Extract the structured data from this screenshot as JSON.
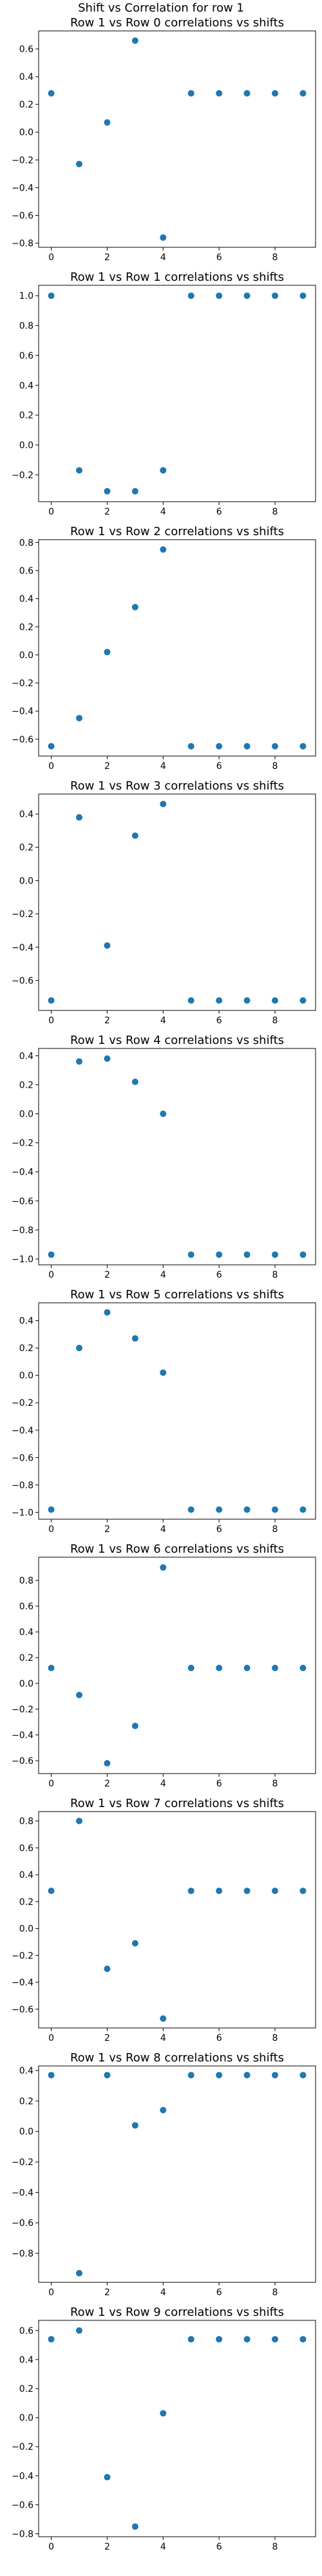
{
  "figure": {
    "suptitle": "Shift vs Correlation for row 1",
    "marker_color": "#1f77b4"
  },
  "chart_data": [
    {
      "type": "scatter",
      "title": "Row 1 vs Row 0 correlations vs shifts",
      "x": [
        0,
        1,
        2,
        3,
        4,
        5,
        6,
        7,
        8,
        9
      ],
      "y": [
        0.28,
        -0.23,
        0.07,
        0.66,
        -0.76,
        0.28,
        0.28,
        0.28,
        0.28,
        0.28
      ],
      "xticks": [
        0,
        2,
        4,
        6,
        8
      ],
      "yticks": [
        -0.8,
        -0.6,
        -0.4,
        -0.2,
        0.0,
        0.2,
        0.4,
        0.6
      ],
      "ytick_labels": [
        "−0.8",
        "−0.6",
        "−0.4",
        "−0.2",
        "0.0",
        "0.2",
        "0.4",
        "0.6"
      ],
      "xlim": [
        -0.45,
        9.45
      ],
      "ylim": [
        -0.83,
        0.73
      ],
      "grid": false
    },
    {
      "type": "scatter",
      "title": "Row 1 vs Row 1 correlations vs shifts",
      "x": [
        0,
        1,
        2,
        3,
        4,
        5,
        6,
        7,
        8,
        9
      ],
      "y": [
        1.0,
        -0.17,
        -0.31,
        -0.31,
        -0.17,
        1.0,
        1.0,
        1.0,
        1.0,
        1.0
      ],
      "xticks": [
        0,
        2,
        4,
        6,
        8
      ],
      "yticks": [
        -0.2,
        0.0,
        0.2,
        0.4,
        0.6,
        0.8,
        1.0
      ],
      "ytick_labels": [
        "−0.2",
        "0.0",
        "0.2",
        "0.4",
        "0.6",
        "0.8",
        "1.0"
      ],
      "xlim": [
        -0.45,
        9.45
      ],
      "ylim": [
        -0.38,
        1.07
      ],
      "grid": false
    },
    {
      "type": "scatter",
      "title": "Row 1 vs Row 2 correlations vs shifts",
      "x": [
        0,
        1,
        2,
        3,
        4,
        5,
        6,
        7,
        8,
        9
      ],
      "y": [
        -0.65,
        -0.45,
        0.02,
        0.34,
        0.75,
        -0.65,
        -0.65,
        -0.65,
        -0.65,
        -0.65
      ],
      "xticks": [
        0,
        2,
        4,
        6,
        8
      ],
      "yticks": [
        -0.6,
        -0.4,
        -0.2,
        0.0,
        0.2,
        0.4,
        0.6,
        0.8
      ],
      "ytick_labels": [
        "−0.6",
        "−0.4",
        "−0.2",
        "0.0",
        "0.2",
        "0.4",
        "0.6",
        "0.8"
      ],
      "xlim": [
        -0.45,
        9.45
      ],
      "ylim": [
        -0.72,
        0.82
      ],
      "grid": false
    },
    {
      "type": "scatter",
      "title": "Row 1 vs Row 3 correlations vs shifts",
      "x": [
        0,
        1,
        2,
        3,
        4,
        5,
        6,
        7,
        8,
        9
      ],
      "y": [
        -0.72,
        0.38,
        -0.39,
        0.27,
        0.46,
        -0.72,
        -0.72,
        -0.72,
        -0.72,
        -0.72
      ],
      "xticks": [
        0,
        2,
        4,
        6,
        8
      ],
      "yticks": [
        -0.6,
        -0.4,
        -0.2,
        0.0,
        0.2,
        0.4
      ],
      "ytick_labels": [
        "−0.6",
        "−0.4",
        "−0.2",
        "0.0",
        "0.2",
        "0.4"
      ],
      "xlim": [
        -0.45,
        9.45
      ],
      "ylim": [
        -0.78,
        0.52
      ],
      "grid": false
    },
    {
      "type": "scatter",
      "title": "Row 1 vs Row 4 correlations vs shifts",
      "x": [
        0,
        1,
        2,
        3,
        4,
        5,
        6,
        7,
        8,
        9
      ],
      "y": [
        -0.97,
        0.36,
        0.38,
        0.22,
        0.0,
        -0.97,
        -0.97,
        -0.97,
        -0.97,
        -0.97
      ],
      "xticks": [
        0,
        2,
        4,
        6,
        8
      ],
      "yticks": [
        -1.0,
        -0.8,
        -0.6,
        -0.4,
        -0.2,
        0.0,
        0.2,
        0.4
      ],
      "ytick_labels": [
        "−1.0",
        "−0.8",
        "−0.6",
        "−0.4",
        "−0.2",
        "0.0",
        "0.2",
        "0.4"
      ],
      "xlim": [
        -0.45,
        9.45
      ],
      "ylim": [
        -1.04,
        0.45
      ],
      "grid": false
    },
    {
      "type": "scatter",
      "title": "Row 1 vs Row 5 correlations vs shifts",
      "x": [
        0,
        1,
        2,
        3,
        4,
        5,
        6,
        7,
        8,
        9
      ],
      "y": [
        -0.98,
        0.2,
        0.46,
        0.27,
        0.02,
        -0.98,
        -0.98,
        -0.98,
        -0.98,
        -0.98
      ],
      "xticks": [
        0,
        2,
        4,
        6,
        8
      ],
      "yticks": [
        -1.0,
        -0.8,
        -0.6,
        -0.4,
        -0.2,
        0.0,
        0.2,
        0.4
      ],
      "ytick_labels": [
        "−1.0",
        "−0.8",
        "−0.6",
        "−0.4",
        "−0.2",
        "0.0",
        "0.2",
        "0.4"
      ],
      "xlim": [
        -0.45,
        9.45
      ],
      "ylim": [
        -1.05,
        0.53
      ],
      "grid": false
    },
    {
      "type": "scatter",
      "title": "Row 1 vs Row 6 correlations vs shifts",
      "x": [
        0,
        1,
        2,
        3,
        4,
        5,
        6,
        7,
        8,
        9
      ],
      "y": [
        0.12,
        -0.09,
        -0.62,
        -0.33,
        0.9,
        0.12,
        0.12,
        0.12,
        0.12,
        0.12
      ],
      "xticks": [
        0,
        2,
        4,
        6,
        8
      ],
      "yticks": [
        -0.6,
        -0.4,
        -0.2,
        0.0,
        0.2,
        0.4,
        0.6,
        0.8
      ],
      "ytick_labels": [
        "−0.6",
        "−0.4",
        "−0.2",
        "0.0",
        "0.2",
        "0.4",
        "0.6",
        "0.8"
      ],
      "xlim": [
        -0.45,
        9.45
      ],
      "ylim": [
        -0.7,
        0.98
      ],
      "grid": false
    },
    {
      "type": "scatter",
      "title": "Row 1 vs Row 7 correlations vs shifts",
      "x": [
        0,
        1,
        2,
        3,
        4,
        5,
        6,
        7,
        8,
        9
      ],
      "y": [
        0.28,
        0.8,
        -0.3,
        -0.11,
        -0.67,
        0.28,
        0.28,
        0.28,
        0.28,
        0.28
      ],
      "xticks": [
        0,
        2,
        4,
        6,
        8
      ],
      "yticks": [
        -0.6,
        -0.4,
        -0.2,
        0.0,
        0.2,
        0.4,
        0.6,
        0.8
      ],
      "ytick_labels": [
        "−0.6",
        "−0.4",
        "−0.2",
        "0.0",
        "0.2",
        "0.4",
        "0.6",
        "0.8"
      ],
      "xlim": [
        -0.45,
        9.45
      ],
      "ylim": [
        -0.74,
        0.87
      ],
      "grid": false
    },
    {
      "type": "scatter",
      "title": "Row 1 vs Row 8 correlations vs shifts",
      "x": [
        0,
        1,
        2,
        3,
        4,
        5,
        6,
        7,
        8,
        9
      ],
      "y": [
        0.37,
        -0.93,
        0.37,
        0.04,
        0.14,
        0.37,
        0.37,
        0.37,
        0.37,
        0.37
      ],
      "xticks": [
        0,
        2,
        4,
        6,
        8
      ],
      "yticks": [
        -0.8,
        -0.6,
        -0.4,
        -0.2,
        0.0,
        0.2,
        0.4
      ],
      "ytick_labels": [
        "−0.8",
        "−0.6",
        "−0.4",
        "−0.2",
        "0.0",
        "0.2",
        "0.4"
      ],
      "xlim": [
        -0.45,
        9.45
      ],
      "ylim": [
        -0.99,
        0.43
      ],
      "grid": false
    },
    {
      "type": "scatter",
      "title": "Row 1 vs Row 9 correlations vs shifts",
      "x": [
        0,
        1,
        2,
        3,
        4,
        5,
        6,
        7,
        8,
        9
      ],
      "y": [
        0.54,
        0.6,
        -0.41,
        -0.75,
        0.03,
        0.54,
        0.54,
        0.54,
        0.54,
        0.54
      ],
      "xticks": [
        0,
        2,
        4,
        6,
        8
      ],
      "yticks": [
        -0.8,
        -0.6,
        -0.4,
        -0.2,
        0.0,
        0.2,
        0.4,
        0.6
      ],
      "ytick_labels": [
        "−0.8",
        "−0.6",
        "−0.4",
        "−0.2",
        "0.0",
        "0.2",
        "0.4",
        "0.6"
      ],
      "xlim": [
        -0.45,
        9.45
      ],
      "ylim": [
        -0.82,
        0.67
      ],
      "grid": false
    }
  ]
}
